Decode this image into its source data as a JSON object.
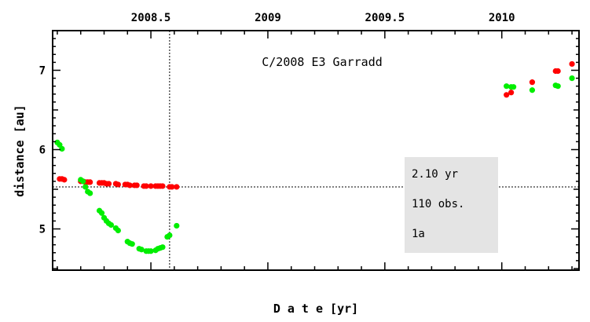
{
  "chart_data": {
    "type": "scatter",
    "title": "C/2008 E3 Garradd",
    "xlabel": "D a t e [yr]",
    "ylabel": "distance [au]",
    "xlim": [
      2008.08,
      2010.33
    ],
    "ylim": [
      4.48,
      7.5
    ],
    "x_ticks": [
      2008.5,
      2009,
      2009.5,
      2010
    ],
    "x_tick_labels": [
      "2008.5",
      "2009",
      "2009.5",
      "2010"
    ],
    "y_ticks": [
      5,
      6,
      7
    ],
    "y_tick_labels": [
      "5",
      "6",
      "7"
    ],
    "reference_lines": {
      "x": 2008.58,
      "y": 5.53
    },
    "info_box": [
      "2.10 yr",
      "110 obs.",
      "1a"
    ],
    "series": [
      {
        "color": "#ff0000",
        "points": [
          [
            2008.11,
            5.63
          ],
          [
            2008.12,
            5.63
          ],
          [
            2008.13,
            5.62
          ],
          [
            2008.2,
            5.6
          ],
          [
            2008.21,
            5.6
          ],
          [
            2008.22,
            5.59
          ],
          [
            2008.23,
            5.59
          ],
          [
            2008.24,
            5.59
          ],
          [
            2008.28,
            5.58
          ],
          [
            2008.29,
            5.58
          ],
          [
            2008.3,
            5.58
          ],
          [
            2008.31,
            5.57
          ],
          [
            2008.32,
            5.57
          ],
          [
            2008.35,
            5.57
          ],
          [
            2008.36,
            5.56
          ],
          [
            2008.39,
            5.56
          ],
          [
            2008.4,
            5.56
          ],
          [
            2008.41,
            5.55
          ],
          [
            2008.43,
            5.55
          ],
          [
            2008.44,
            5.55
          ],
          [
            2008.47,
            5.54
          ],
          [
            2008.48,
            5.54
          ],
          [
            2008.5,
            5.54
          ],
          [
            2008.52,
            5.54
          ],
          [
            2008.53,
            5.54
          ],
          [
            2008.54,
            5.54
          ],
          [
            2008.55,
            5.54
          ],
          [
            2008.58,
            5.53
          ],
          [
            2008.59,
            5.53
          ],
          [
            2008.61,
            5.53
          ],
          [
            2010.02,
            6.69
          ],
          [
            2010.04,
            6.72
          ],
          [
            2010.13,
            6.85
          ],
          [
            2010.23,
            6.99
          ],
          [
            2010.24,
            6.99
          ],
          [
            2010.3,
            7.08
          ]
        ]
      },
      {
        "color": "#00ee00",
        "points": [
          [
            2008.1,
            6.09
          ],
          [
            2008.11,
            6.06
          ],
          [
            2008.12,
            6.01
          ],
          [
            2008.2,
            5.62
          ],
          [
            2008.21,
            5.6
          ],
          [
            2008.22,
            5.53
          ],
          [
            2008.23,
            5.47
          ],
          [
            2008.24,
            5.45
          ],
          [
            2008.28,
            5.23
          ],
          [
            2008.29,
            5.2
          ],
          [
            2008.3,
            5.14
          ],
          [
            2008.31,
            5.1
          ],
          [
            2008.32,
            5.07
          ],
          [
            2008.33,
            5.05
          ],
          [
            2008.35,
            5.01
          ],
          [
            2008.36,
            4.98
          ],
          [
            2008.4,
            4.84
          ],
          [
            2008.41,
            4.82
          ],
          [
            2008.42,
            4.81
          ],
          [
            2008.45,
            4.75
          ],
          [
            2008.46,
            4.74
          ],
          [
            2008.48,
            4.72
          ],
          [
            2008.49,
            4.72
          ],
          [
            2008.5,
            4.72
          ],
          [
            2008.52,
            4.73
          ],
          [
            2008.53,
            4.75
          ],
          [
            2008.54,
            4.76
          ],
          [
            2008.55,
            4.77
          ],
          [
            2008.57,
            4.9
          ],
          [
            2008.58,
            4.92
          ],
          [
            2008.61,
            5.04
          ],
          [
            2010.02,
            6.8
          ],
          [
            2010.04,
            6.79
          ],
          [
            2010.05,
            6.79
          ],
          [
            2010.13,
            6.75
          ],
          [
            2010.23,
            6.81
          ],
          [
            2010.24,
            6.8
          ],
          [
            2010.3,
            6.9
          ]
        ]
      }
    ]
  }
}
